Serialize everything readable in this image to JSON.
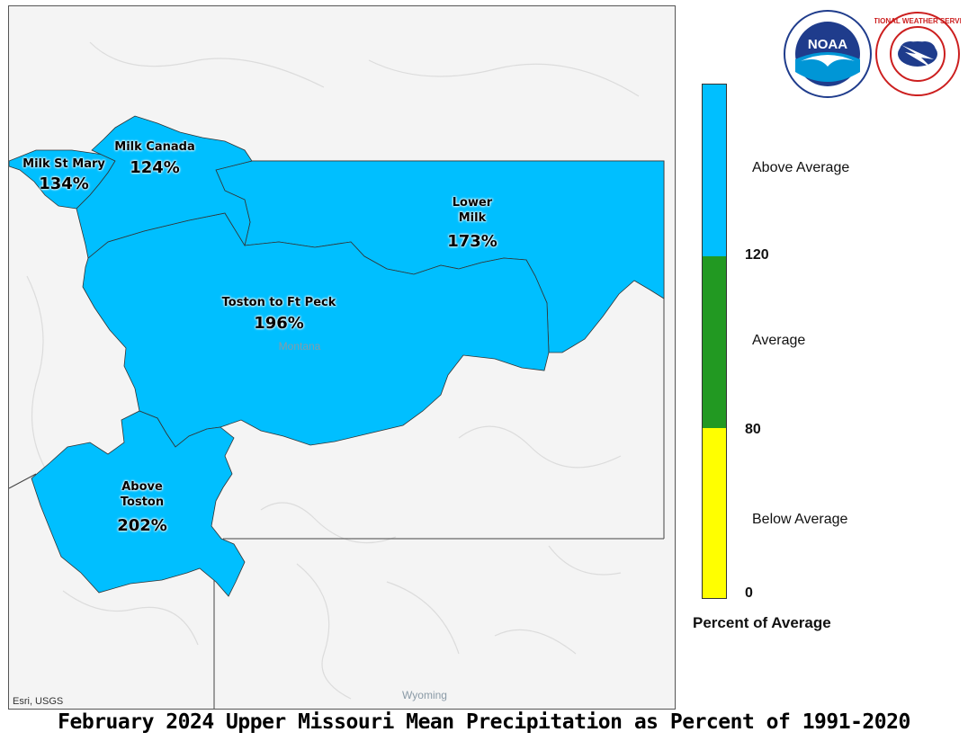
{
  "title": "February 2024 Upper Missouri Mean Precipitation as Percent of 1991-2020",
  "attribution": "Esri, USGS",
  "place_labels": {
    "montana": "Montana",
    "wyoming": "Wyoming"
  },
  "basins": [
    {
      "name": "Milk St Mary",
      "value": "134%",
      "category": "Above Average"
    },
    {
      "name": "Milk Canada",
      "value": "124%",
      "category": "Above Average"
    },
    {
      "name": "Lower Milk",
      "value": "173%",
      "category": "Above Average"
    },
    {
      "name": "Toston to Ft Peck",
      "value": "196%",
      "category": "Above Average"
    },
    {
      "name": "Above Toston",
      "value": "202%",
      "category": "Above Average"
    }
  ],
  "legend": {
    "title": "Percent of Average",
    "categories": [
      {
        "label": "Above Average",
        "color": "#00bfff"
      },
      {
        "label": "Average",
        "color": "#229922"
      },
      {
        "label": "Below Average",
        "color": "#ffff00"
      }
    ],
    "ticks": [
      "120",
      "80",
      "0"
    ]
  },
  "colors": {
    "basin_fill": "#00bfff",
    "terrain": "#f4f4f4"
  },
  "logos": [
    {
      "icon": "noaa-logo",
      "text": "NOAA"
    },
    {
      "icon": "nws-logo",
      "text": "NATIONAL WEATHER SERVICE"
    }
  ]
}
